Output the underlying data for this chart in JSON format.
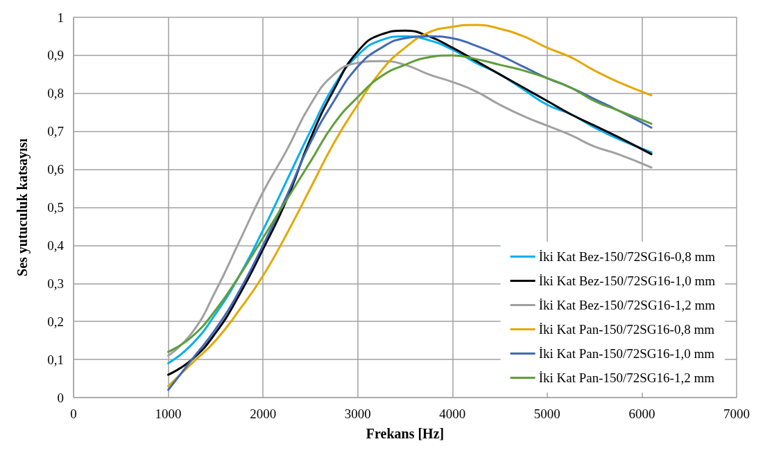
{
  "chart_data": {
    "type": "line",
    "xlabel": "Frekans [Hz]",
    "ylabel": "Ses yutuculuk katsayısı",
    "x": [
      1000,
      1250,
      1500,
      1750,
      2000,
      2250,
      2500,
      2750,
      3000,
      3250,
      3500,
      3750,
      4000,
      4250,
      4500,
      4750,
      5000,
      5250,
      5500,
      5750,
      6100
    ],
    "series": [
      {
        "name": "İki Kat Bez-150/72SG16-0,8 mm",
        "color": "#00b0f0",
        "values": [
          0.09,
          0.14,
          0.22,
          0.32,
          0.44,
          0.57,
          0.7,
          0.82,
          0.9,
          0.94,
          0.95,
          0.94,
          0.915,
          0.88,
          0.85,
          0.81,
          0.77,
          0.745,
          0.71,
          0.68,
          0.645
        ]
      },
      {
        "name": "İki Kat Bez-150/72SG16-1,0 mm",
        "color": "#000000",
        "values": [
          0.06,
          0.1,
          0.17,
          0.27,
          0.39,
          0.52,
          0.68,
          0.81,
          0.91,
          0.955,
          0.965,
          0.95,
          0.92,
          0.885,
          0.85,
          0.815,
          0.78,
          0.745,
          0.715,
          0.685,
          0.64
        ]
      },
      {
        "name": "İki Kat Bez-150/72SG16-1,2 mm",
        "color": "#a0a0a0",
        "values": [
          0.11,
          0.17,
          0.28,
          0.41,
          0.54,
          0.65,
          0.77,
          0.85,
          0.88,
          0.885,
          0.875,
          0.85,
          0.83,
          0.805,
          0.77,
          0.74,
          0.715,
          0.69,
          0.66,
          0.64,
          0.605
        ]
      },
      {
        "name": "İki Kat Pan-150/72SG16-0,8 mm",
        "color": "#e3a800",
        "values": [
          0.03,
          0.09,
          0.15,
          0.23,
          0.32,
          0.43,
          0.55,
          0.67,
          0.77,
          0.86,
          0.92,
          0.96,
          0.975,
          0.98,
          0.97,
          0.95,
          0.92,
          0.895,
          0.86,
          0.83,
          0.795
        ]
      },
      {
        "name": "İki Kat Pan-150/72SG16-1,0 mm",
        "color": "#4169b8",
        "values": [
          0.02,
          0.1,
          0.18,
          0.28,
          0.4,
          0.53,
          0.67,
          0.78,
          0.87,
          0.92,
          0.945,
          0.95,
          0.945,
          0.925,
          0.9,
          0.87,
          0.84,
          0.815,
          0.785,
          0.755,
          0.71
        ]
      },
      {
        "name": "İki Kat Pan-150/72SG16-1,2 mm",
        "color": "#5f9e3c",
        "values": [
          0.12,
          0.16,
          0.23,
          0.32,
          0.42,
          0.52,
          0.62,
          0.72,
          0.79,
          0.845,
          0.875,
          0.895,
          0.9,
          0.89,
          0.875,
          0.86,
          0.84,
          0.815,
          0.78,
          0.755,
          0.72
        ]
      }
    ],
    "xlim": [
      0,
      7000
    ],
    "xticks": [
      0,
      1000,
      2000,
      3000,
      4000,
      5000,
      6000,
      7000
    ],
    "ylim": [
      0,
      1
    ],
    "yticks": [
      0,
      {
        "value": 0.1,
        "label": "0,1"
      },
      {
        "value": 0.2,
        "label": "0,2"
      },
      {
        "value": 0.3,
        "label": "0,3"
      },
      {
        "value": 0.4,
        "label": "0,4"
      },
      {
        "value": 0.5,
        "label": "0,5"
      },
      {
        "value": 0.6,
        "label": "0,6"
      },
      {
        "value": 0.7,
        "label": "0,7"
      },
      {
        "value": 0.8,
        "label": "0,8"
      },
      {
        "value": 0.9,
        "label": "0,9"
      },
      1
    ],
    "grid": true,
    "legend": "bottom right",
    "marker": "none",
    "line_style": "solid"
  }
}
